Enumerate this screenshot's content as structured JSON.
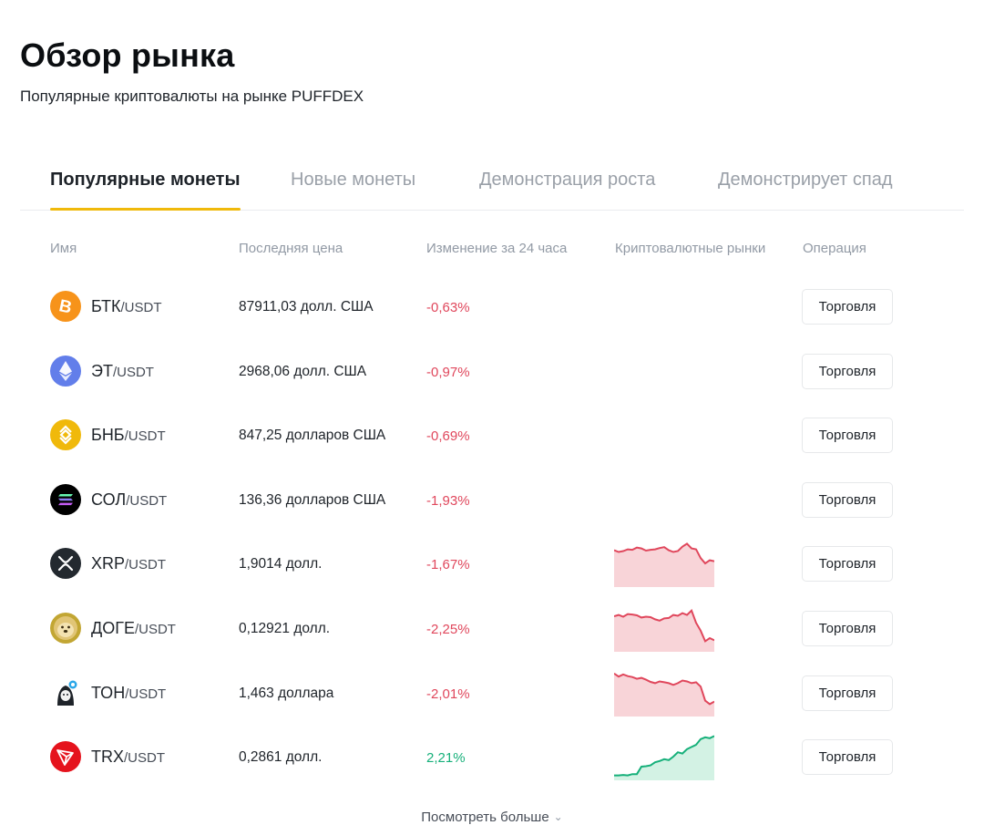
{
  "header": {
    "title": "Обзор рынка",
    "subtitle": "Популярные криптовалюты на рынке PUFFDEX"
  },
  "tabs": [
    {
      "label": "Популярные монеты",
      "active": true
    },
    {
      "label": "Новые монеты",
      "active": false
    },
    {
      "label": "Демонстрация роста",
      "active": false
    },
    {
      "label": "Демонстрирует спад",
      "active": false
    }
  ],
  "columns": [
    "Имя",
    "Последняя цена",
    "Изменение за 24 часа",
    "Криптовалютные рынки",
    "Операция"
  ],
  "colors": {
    "accent": "#f0b90b",
    "down": "#e0475c",
    "up": "#16b07a"
  },
  "rows": [
    {
      "symbol": "БТК",
      "quote": "/USDT",
      "price": "87911,03 долл. США",
      "change": "-0,63%",
      "direction": "down",
      "icon": "bitcoin-icon",
      "trade_label": "Торговля",
      "spark": []
    },
    {
      "symbol": "ЭТ",
      "quote": "/USDT",
      "price": "2968,06 долл. США",
      "change": "-0,97%",
      "direction": "down",
      "icon": "ethereum-icon",
      "trade_label": "Торговля",
      "spark": []
    },
    {
      "symbol": "БНБ",
      "quote": "/USDT",
      "price": "847,25 долларов США",
      "change": "-0,69%",
      "direction": "down",
      "icon": "bnb-icon",
      "trade_label": "Торговля",
      "spark": []
    },
    {
      "symbol": "СОЛ",
      "quote": "/USDT",
      "price": "136,36 долларов США",
      "change": "-1,93%",
      "direction": "down",
      "icon": "solana-icon",
      "trade_label": "Торговля",
      "spark": []
    },
    {
      "symbol": "XRP",
      "quote": "/USDT",
      "price": "1,9014 долл.",
      "change": "-1,67%",
      "direction": "down",
      "icon": "xrp-icon",
      "trade_label": "Торговля",
      "spark": [
        0.78,
        0.74,
        0.76,
        0.8,
        0.79,
        0.84,
        0.82,
        0.77,
        0.79,
        0.8,
        0.83,
        0.85,
        0.78,
        0.74,
        0.76,
        0.86,
        0.93,
        0.82,
        0.8,
        0.6,
        0.48,
        0.55,
        0.53
      ]
    },
    {
      "symbol": "ДОГЕ",
      "quote": "/USDT",
      "price": "0,12921 долл.",
      "change": "-2,25%",
      "direction": "down",
      "icon": "doge-icon",
      "trade_label": "Торговля",
      "spark": [
        0.75,
        0.78,
        0.74,
        0.8,
        0.79,
        0.77,
        0.72,
        0.74,
        0.73,
        0.68,
        0.65,
        0.7,
        0.71,
        0.78,
        0.76,
        0.82,
        0.78,
        0.88,
        0.6,
        0.42,
        0.18,
        0.25,
        0.2
      ]
    },
    {
      "symbol": "ТОН",
      "quote": "/USDT",
      "price": "1,463 доллара",
      "change": "-2,01%",
      "direction": "down",
      "icon": "ton-icon",
      "trade_label": "Торговля",
      "spark": [
        0.92,
        0.85,
        0.9,
        0.86,
        0.84,
        0.8,
        0.82,
        0.78,
        0.73,
        0.7,
        0.74,
        0.72,
        0.7,
        0.66,
        0.7,
        0.76,
        0.74,
        0.7,
        0.72,
        0.62,
        0.3,
        0.22,
        0.28
      ]
    },
    {
      "symbol": "TRX",
      "quote": "/USDT",
      "price": "0,2861 долл.",
      "change": "2,21%",
      "direction": "up",
      "icon": "tron-icon",
      "trade_label": "Торговля",
      "spark": [
        0.05,
        0.05,
        0.06,
        0.05,
        0.08,
        0.08,
        0.25,
        0.26,
        0.28,
        0.35,
        0.38,
        0.42,
        0.4,
        0.48,
        0.58,
        0.55,
        0.65,
        0.7,
        0.75,
        0.88,
        0.92,
        0.9,
        0.95
      ]
    }
  ],
  "footer": {
    "more_label": "Посмотреть больше"
  }
}
